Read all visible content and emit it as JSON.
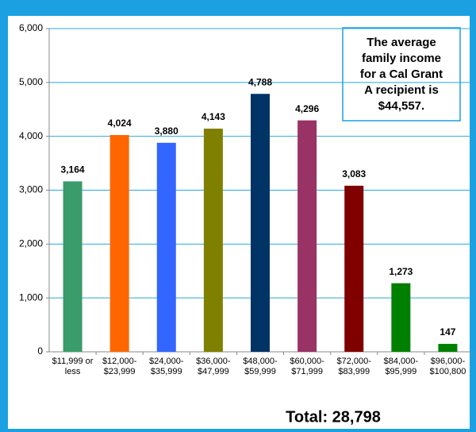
{
  "chart_data": {
    "type": "bar",
    "categories": [
      [
        "$11,999 or",
        "less"
      ],
      [
        "$12,000-",
        "$23,999"
      ],
      [
        "$24,000-",
        "$35,999"
      ],
      [
        "$36,000-",
        "$47,999"
      ],
      [
        "$48,000-",
        "$59,999"
      ],
      [
        "$60,000-",
        "$71,999"
      ],
      [
        "$72,000-",
        "$83,999"
      ],
      [
        "$84,000-",
        "$95,999"
      ],
      [
        "$96,000-",
        "$100,800"
      ]
    ],
    "values": [
      3164,
      4024,
      3880,
      4143,
      4788,
      4296,
      3083,
      1273,
      147
    ],
    "value_labels": [
      "3,164",
      "4,024",
      "3,880",
      "4,143",
      "4,788",
      "4,296",
      "3,083",
      "1,273",
      "147"
    ],
    "colors": [
      "#3a9b6b",
      "#ff6600",
      "#3366ff",
      "#808000",
      "#003366",
      "#993366",
      "#800000",
      "#008000",
      "#008000"
    ],
    "ylim": [
      0,
      6000
    ],
    "yticks": [
      {
        "value": 0,
        "label": "0"
      },
      {
        "value": 1000,
        "label": "1,000"
      },
      {
        "value": 2000,
        "label": "2,000"
      },
      {
        "value": 3000,
        "label": "3,000"
      },
      {
        "value": 4000,
        "label": "4,000"
      },
      {
        "value": 5000,
        "label": "5,000"
      },
      {
        "value": 6000,
        "label": "6,000"
      }
    ],
    "grid": true,
    "annotation": [
      "The average",
      "family income",
      "for a Cal Grant",
      "A recipient is",
      "$44,557."
    ],
    "total": "Total:  28,798"
  }
}
